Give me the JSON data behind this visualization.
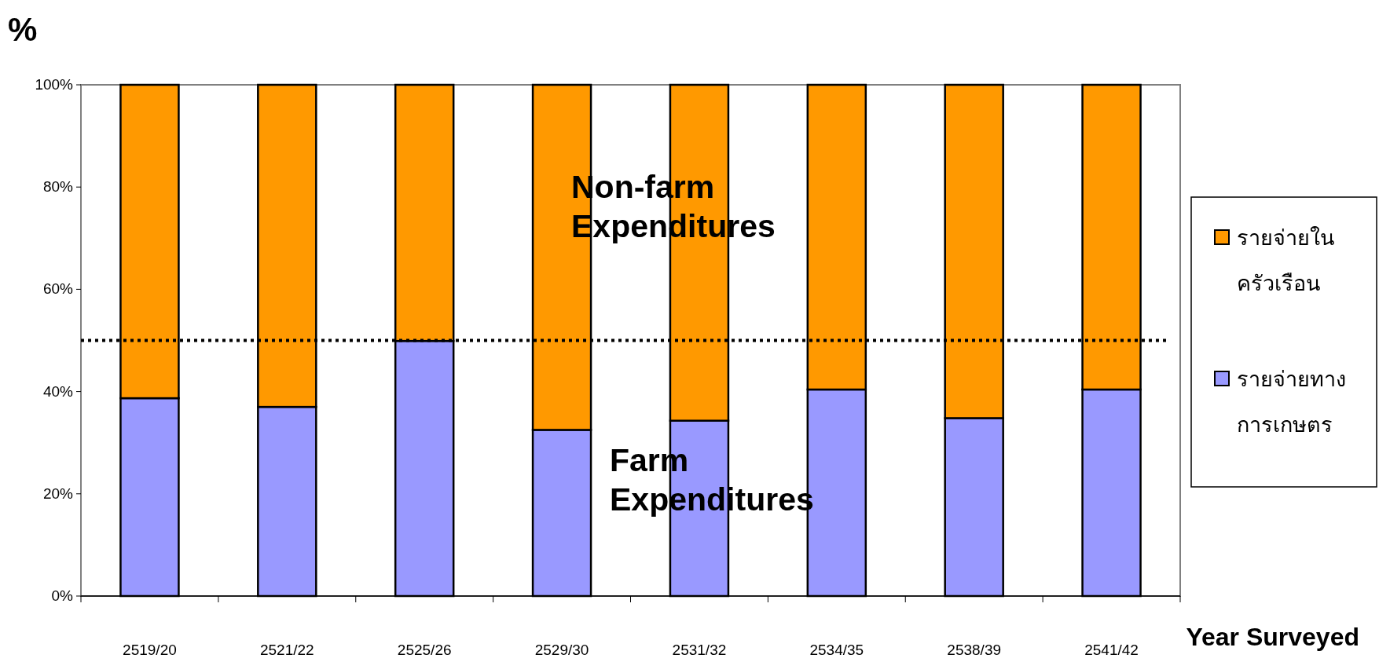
{
  "chart_data": {
    "type": "bar",
    "stacked": true,
    "ylabel": "%",
    "xlabel": "Year Surveyed",
    "categories": [
      "2519/20",
      "2521/22",
      "2525/26",
      "2529/30",
      "2531/32",
      "2534/35",
      "2538/39",
      "2541/42"
    ],
    "series": [
      {
        "name": "รายจ่ายทางการเกษตร",
        "color": "#9999ff",
        "values": [
          38.7,
          37.0,
          49.9,
          32.5,
          34.3,
          40.4,
          34.8,
          40.4
        ]
      },
      {
        "name": "รายจ่ายในครัวเรือน",
        "color": "#ff9900",
        "values": [
          61.3,
          63.0,
          50.1,
          67.5,
          65.7,
          59.6,
          65.2,
          59.6
        ]
      }
    ],
    "ylim": [
      0,
      100
    ],
    "yticks": [
      {
        "value": 0,
        "label": "0%"
      },
      {
        "value": 20,
        "label": "20%"
      },
      {
        "value": 40,
        "label": "40%"
      },
      {
        "value": 60,
        "label": "60%"
      },
      {
        "value": 80,
        "label": "80%"
      },
      {
        "value": 100,
        "label": "100%"
      }
    ],
    "ref_lines": [
      {
        "axis": "y",
        "value": 50,
        "color": "#000000",
        "line_style": "dotted"
      }
    ],
    "annotations": [
      "Non-farm Expenditures",
      "Farm Expenditures"
    ],
    "grid": false,
    "legend": "right"
  }
}
